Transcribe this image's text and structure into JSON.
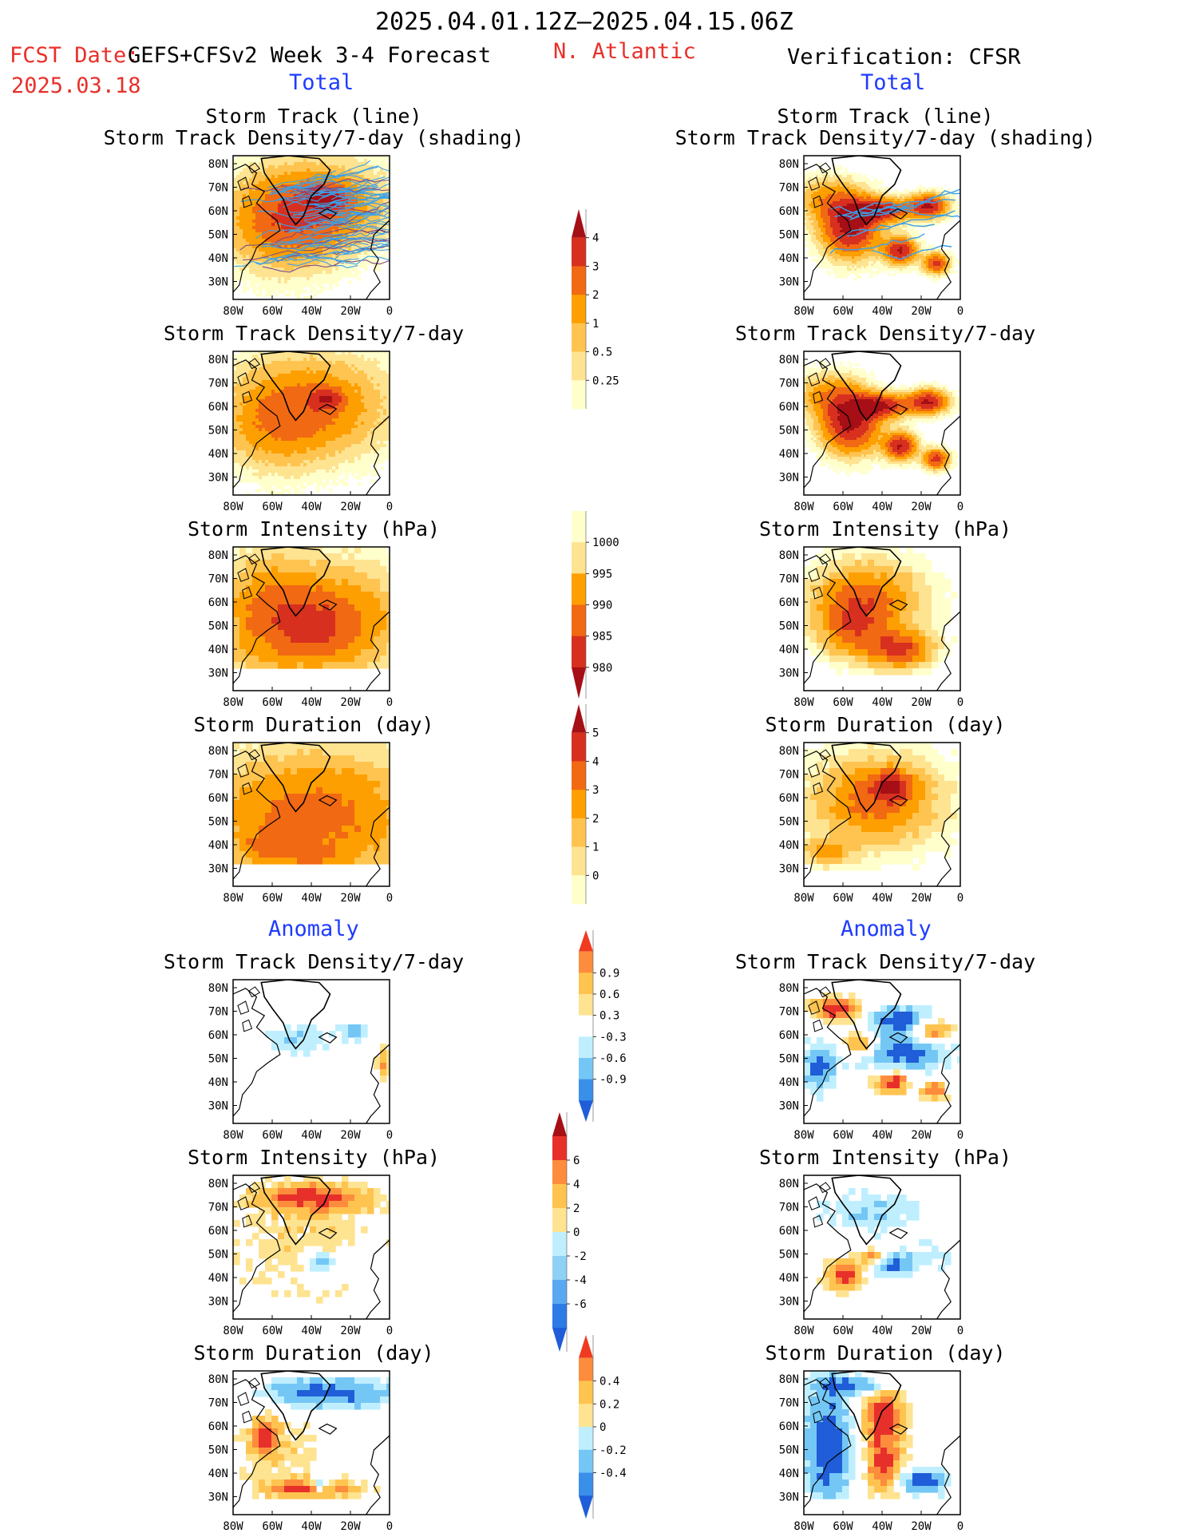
{
  "header": {
    "period": "2025.04.01.12Z–2025.04.15.06Z",
    "fcst_line1": "FCST Date:",
    "fcst_model": "GEFS+CFSv2 Week 3-4 Forecast",
    "fcst_date": "2025.03.18",
    "region": "N. Atlantic",
    "verification": "Verification: CFSR",
    "left_section": "Total",
    "right_section": "Total",
    "left_anomaly": "Anomaly",
    "right_anomaly": "Anomaly"
  },
  "axes": {
    "lat_labels": [
      "80N",
      "70N",
      "60N",
      "50N",
      "40N",
      "30N"
    ],
    "lon_labels": [
      "80W",
      "60W",
      "40W",
      "20W",
      "0"
    ]
  },
  "panels": [
    {
      "id": "track",
      "title1": "Storm Track (line)",
      "title2": "Storm Track Density/7-day (shading)"
    },
    {
      "id": "density",
      "title1": "Storm Track Density/7-day",
      "title2": ""
    },
    {
      "id": "intensity",
      "title1": "Storm Intensity (hPa)",
      "title2": ""
    },
    {
      "id": "duration",
      "title1": "Storm Duration (day)",
      "title2": ""
    },
    {
      "id": "density-anom",
      "title1": "Storm Track Density/7-day",
      "title2": ""
    },
    {
      "id": "intensity-anom",
      "title1": "Storm Intensity (hPa)",
      "title2": ""
    },
    {
      "id": "duration-anom",
      "title1": "Storm Duration (day)",
      "title2": ""
    }
  ],
  "colorbars": [
    {
      "id": "density-bar",
      "labels": [
        "4",
        "3",
        "2",
        "1",
        "0.5",
        "0.25"
      ],
      "colors": [
        "#a50f15",
        "#d7301f",
        "#f16913",
        "#fd9f00",
        "#fec44f",
        "#fee391",
        "#ffffcc"
      ]
    },
    {
      "id": "intensity-bar",
      "labels": [
        "1000",
        "995",
        "990",
        "985",
        "980"
      ],
      "colors": [
        "#ffffcc",
        "#fee391",
        "#fd9f00",
        "#f16913",
        "#d7301f",
        "#a50f15"
      ]
    },
    {
      "id": "duration-bar",
      "labels": [
        "5",
        "4",
        "3",
        "2",
        "1",
        "0"
      ],
      "colors": [
        "#a50f15",
        "#d7301f",
        "#f16913",
        "#fd9f00",
        "#fec44f",
        "#fee391",
        "#ffffcc"
      ]
    },
    {
      "id": "density-anom-bar",
      "labels": [
        "0.9",
        "0.6",
        "0.3",
        "-0.3",
        "-0.6",
        "-0.9"
      ],
      "colors": [
        "#f03b20",
        "#fd8d3c",
        "#fec44f",
        "#fee391",
        "#ffffff",
        "#bfefff",
        "#74c7f5",
        "#3a8fe8",
        "#1f5ed8"
      ]
    },
    {
      "id": "intensity-anom-bar",
      "labels": [
        "6",
        "4",
        "2",
        "0",
        "-2",
        "-4",
        "-6"
      ],
      "colors": [
        "#a50f15",
        "#e8302a",
        "#fd8d3c",
        "#fec44f",
        "#fee391",
        "#bfefff",
        "#8fd0f5",
        "#5aa8f0",
        "#2e7ae6",
        "#1f5ed8"
      ]
    },
    {
      "id": "duration-anom-bar",
      "labels": [
        "0.4",
        "0.2",
        "0",
        "-0.2",
        "-0.4"
      ],
      "colors": [
        "#f03b20",
        "#fd8d3c",
        "#fec44f",
        "#fee391",
        "#bfefff",
        "#74c7f5",
        "#3a8fe8",
        "#1f5ed8"
      ]
    }
  ],
  "palette": {
    "land_line": "#000000",
    "track_line": "#3aa0e8",
    "track_dark": "#7a4a8a"
  }
}
